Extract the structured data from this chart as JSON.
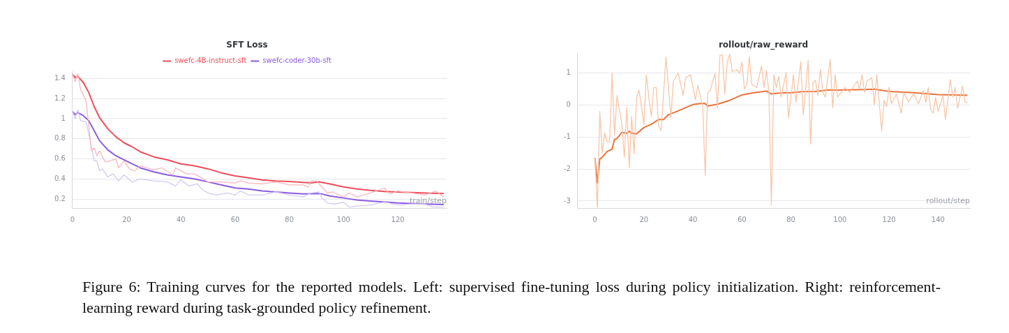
{
  "chart_data": [
    {
      "type": "line",
      "title": "SFT Loss",
      "xlabel": "train/step",
      "legend": "top",
      "grid": "y",
      "marker": "none",
      "line_style": "solid",
      "xlim": [
        0,
        138
      ],
      "ylim": [
        0.11,
        1.47
      ],
      "xticks": [
        0,
        20,
        40,
        60,
        80,
        100,
        120
      ],
      "yticks": [
        0.2,
        0.4,
        0.6,
        0.8,
        {
          "value": 1,
          "label": "1"
        },
        1.2,
        1.4
      ],
      "series": [
        {
          "color": "#f7b8bf",
          "x": [
            0,
            1,
            2,
            3,
            5,
            7,
            8,
            9,
            10,
            12,
            14,
            16,
            17,
            19,
            21,
            23,
            25,
            30,
            33,
            37,
            38,
            42,
            45,
            47,
            50,
            52,
            55,
            60,
            62,
            65,
            70,
            75,
            80,
            85,
            87,
            88,
            90,
            92,
            94,
            96,
            100,
            102,
            105,
            110,
            115,
            117,
            120,
            125,
            130,
            134,
            137
          ],
          "values": [
            1.44,
            1.37,
            1.45,
            1.29,
            1.18,
            0.68,
            0.71,
            0.63,
            0.68,
            0.57,
            0.58,
            0.6,
            0.51,
            0.58,
            0.5,
            0.48,
            0.53,
            0.49,
            0.51,
            0.44,
            0.51,
            0.45,
            0.45,
            0.42,
            0.37,
            0.37,
            0.37,
            0.36,
            0.38,
            0.36,
            0.35,
            0.37,
            0.34,
            0.34,
            0.32,
            0.38,
            0.38,
            0.32,
            0.26,
            0.27,
            0.22,
            0.26,
            0.22,
            0.26,
            0.31,
            0.25,
            0.28,
            0.26,
            0.24,
            0.28,
            0.22
          ]
        },
        {
          "color": "#d4c9f4",
          "x": [
            0,
            1,
            2,
            3,
            5,
            7,
            8,
            9,
            10,
            11,
            13,
            15,
            17,
            19,
            22,
            25,
            30,
            35,
            38,
            40,
            43,
            46,
            48,
            50,
            53,
            57,
            60,
            62,
            65,
            70,
            75,
            80,
            85,
            88,
            91,
            92,
            94,
            97,
            100,
            102,
            105,
            110,
            115,
            120,
            125,
            130,
            133,
            137
          ],
          "values": [
            1.07,
            1.0,
            1.09,
            0.98,
            0.97,
            0.72,
            0.58,
            0.58,
            0.48,
            0.5,
            0.42,
            0.45,
            0.38,
            0.44,
            0.37,
            0.4,
            0.38,
            0.37,
            0.33,
            0.39,
            0.33,
            0.35,
            0.29,
            0.26,
            0.24,
            0.26,
            0.24,
            0.28,
            0.24,
            0.24,
            0.27,
            0.24,
            0.22,
            0.26,
            0.27,
            0.21,
            0.16,
            0.15,
            0.17,
            0.12,
            0.13,
            0.14,
            0.17,
            0.14,
            0.15,
            0.15,
            0.12,
            0.12
          ]
        },
        {
          "name": "swefc-4B-instruct-sft",
          "color": "#ef4d5a",
          "x": [
            0,
            1,
            2,
            4,
            6,
            8,
            10,
            13,
            16,
            19,
            22,
            25,
            30,
            35,
            40,
            45,
            50,
            55,
            60,
            65,
            70,
            75,
            80,
            85,
            88,
            91,
            95,
            100,
            105,
            110,
            115,
            120,
            125,
            130,
            137
          ],
          "values": [
            1.44,
            1.41,
            1.42,
            1.36,
            1.26,
            1.12,
            1.01,
            0.9,
            0.82,
            0.76,
            0.72,
            0.67,
            0.62,
            0.59,
            0.55,
            0.53,
            0.5,
            0.46,
            0.43,
            0.41,
            0.39,
            0.38,
            0.375,
            0.365,
            0.36,
            0.37,
            0.35,
            0.32,
            0.3,
            0.285,
            0.275,
            0.27,
            0.265,
            0.26,
            0.255
          ]
        },
        {
          "name": "swefc-coder-30b-sft",
          "color": "#8a5ce0",
          "x": [
            0,
            1,
            2,
            4,
            6,
            8,
            10,
            13,
            16,
            19,
            22,
            25,
            30,
            35,
            40,
            45,
            50,
            55,
            60,
            65,
            70,
            75,
            80,
            85,
            90,
            92,
            95,
            100,
            105,
            110,
            115,
            120,
            125,
            130,
            137
          ],
          "values": [
            1.07,
            1.04,
            1.06,
            1.03,
            0.98,
            0.88,
            0.78,
            0.69,
            0.63,
            0.59,
            0.55,
            0.51,
            0.47,
            0.44,
            0.42,
            0.4,
            0.37,
            0.34,
            0.31,
            0.3,
            0.28,
            0.27,
            0.26,
            0.25,
            0.255,
            0.25,
            0.23,
            0.21,
            0.19,
            0.18,
            0.17,
            0.16,
            0.155,
            0.15,
            0.145
          ]
        }
      ],
      "annotations": [
        "Figure 6: Training curves for the reported models. Left: supervised fine-tuning loss during policy initialization. Right: reinforcement-learning reward during task-grounded policy refinement."
      ]
    },
    {
      "type": "line",
      "title": "rollout/raw_reward",
      "xlabel": "rollout/step",
      "grid": "y",
      "marker": "none",
      "line_style": "solid",
      "xlim": [
        -7,
        153
      ],
      "ylim": [
        -3.22,
        1.62
      ],
      "xticks": [
        0,
        20,
        40,
        60,
        80,
        100,
        120,
        140
      ],
      "yticks": [
        -3,
        -2,
        -1,
        0,
        1
      ],
      "series": [
        {
          "color": "#f8c6a8",
          "x": [
            0,
            1,
            2,
            3,
            4,
            5,
            6,
            7,
            8,
            9,
            11,
            12,
            13,
            14,
            15,
            16,
            17,
            18,
            19,
            20,
            21,
            22,
            23,
            24,
            25,
            26,
            27,
            29,
            31,
            32,
            34,
            36,
            37,
            39,
            41,
            42,
            44,
            45,
            46,
            47,
            49,
            50,
            51,
            52,
            53,
            54,
            55,
            56,
            58,
            59,
            60,
            61,
            62,
            63,
            64,
            66,
            68,
            69,
            70,
            71,
            72,
            73,
            74,
            75,
            76,
            78,
            79,
            81,
            82,
            84,
            85,
            87,
            88,
            89,
            90,
            91,
            92,
            93,
            94,
            96,
            97,
            98,
            99,
            102,
            104,
            107,
            108,
            109,
            110,
            111,
            113,
            114,
            115,
            117,
            118,
            119,
            120,
            121,
            123,
            125,
            126,
            128,
            130,
            132,
            134,
            135,
            136,
            137,
            138,
            139,
            140,
            142,
            143,
            145,
            146,
            147,
            148,
            150,
            151,
            152
          ],
          "values": [
            -1.65,
            -3.2,
            -0.2,
            -1.5,
            -0.87,
            -1.15,
            -1.16,
            1.0,
            -0.95,
            0.3,
            -0.6,
            -1.63,
            -0.08,
            -1.95,
            -0.35,
            -1.52,
            0.25,
            0.47,
            -0.06,
            -0.6,
            0.95,
            0.25,
            -0.35,
            0.55,
            0.55,
            -0.65,
            -0.8,
            1.5,
            -0.4,
            0.75,
            1.0,
            0.3,
            0.85,
            0.95,
            0.18,
            0.62,
            -0.05,
            -2.2,
            0.4,
            0.45,
            1.0,
            -0.1,
            1.55,
            1.58,
            0.35,
            1.35,
            1.6,
            1.05,
            1.1,
            1.0,
            1.35,
            0.5,
            0.65,
            1.52,
            0.65,
            0.55,
            1.22,
            0.55,
            1.08,
            0.4,
            -3.12,
            0.95,
            0.55,
            0.9,
            0.25,
            1.02,
            -0.4,
            0.95,
            0.1,
            1.35,
            -0.3,
            1.4,
            -1.22,
            0.7,
            0.78,
            0.3,
            1.12,
            0.4,
            0.25,
            1.43,
            -0.08,
            0.95,
            0.25,
            0.55,
            0.4,
            0.75,
            0.5,
            0.95,
            0.4,
            0.75,
            0.85,
            0.02,
            0.95,
            -0.8,
            0.15,
            -0.05,
            0.55,
            0.05,
            0.35,
            -0.25,
            0.4,
            0.1,
            0.35,
            0.05,
            0.45,
            0.08,
            0.55,
            -0.15,
            -0.25,
            0.25,
            -0.2,
            0.3,
            -0.45,
            0.8,
            0.25,
            0.55,
            -0.1,
            0.6,
            0.1,
            0.07
          ]
        },
        {
          "color": "#e8743b",
          "x": [
            0,
            1,
            2,
            3,
            5,
            7,
            8,
            9,
            11,
            13,
            14,
            15,
            17,
            20,
            23,
            26,
            28,
            30,
            35,
            40,
            43,
            45,
            46,
            50,
            55,
            60,
            65,
            70,
            72,
            75,
            80,
            85,
            90,
            95,
            100,
            110,
            114,
            120,
            130,
            140,
            152
          ],
          "values": [
            -1.65,
            -2.43,
            -1.68,
            -1.63,
            -1.45,
            -1.38,
            -1.07,
            -1.05,
            -0.85,
            -0.88,
            -0.82,
            -0.88,
            -0.9,
            -0.7,
            -0.6,
            -0.45,
            -0.45,
            -0.3,
            -0.15,
            0.02,
            0.05,
            0.05,
            -0.03,
            0.03,
            0.15,
            0.32,
            0.39,
            0.44,
            0.35,
            0.38,
            0.39,
            0.42,
            0.43,
            0.47,
            0.47,
            0.49,
            0.5,
            0.43,
            0.39,
            0.33,
            0.31
          ]
        }
      ]
    }
  ]
}
